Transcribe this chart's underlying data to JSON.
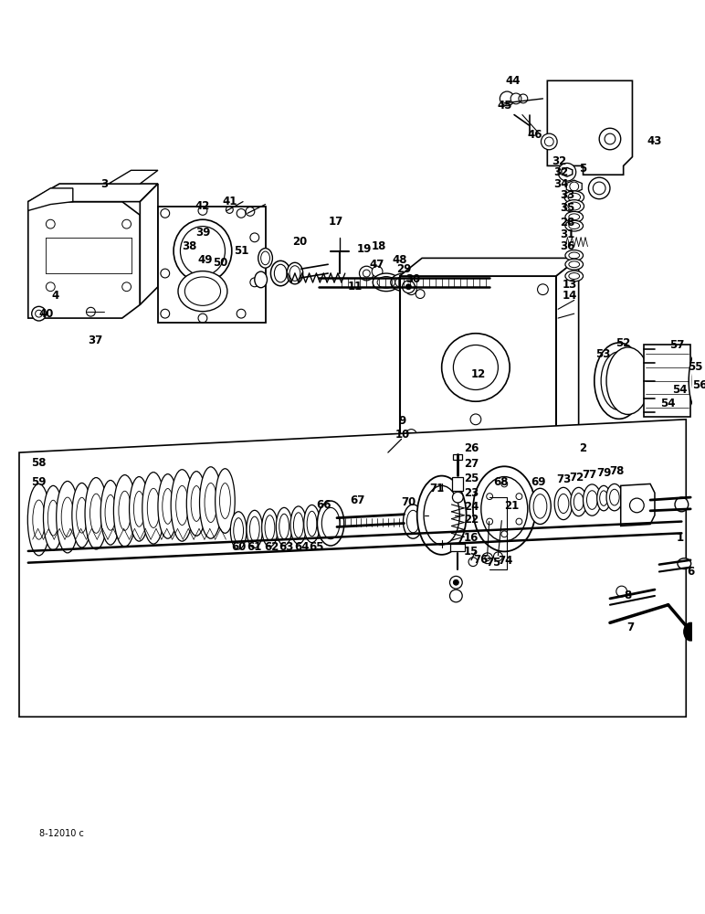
{
  "bg_color": "#ffffff",
  "figsize": [
    7.72,
    10.0
  ],
  "dpi": 100,
  "watermark": "8-12010 c",
  "lw_thin": 0.6,
  "lw_med": 1.0,
  "lw_thick": 1.5
}
